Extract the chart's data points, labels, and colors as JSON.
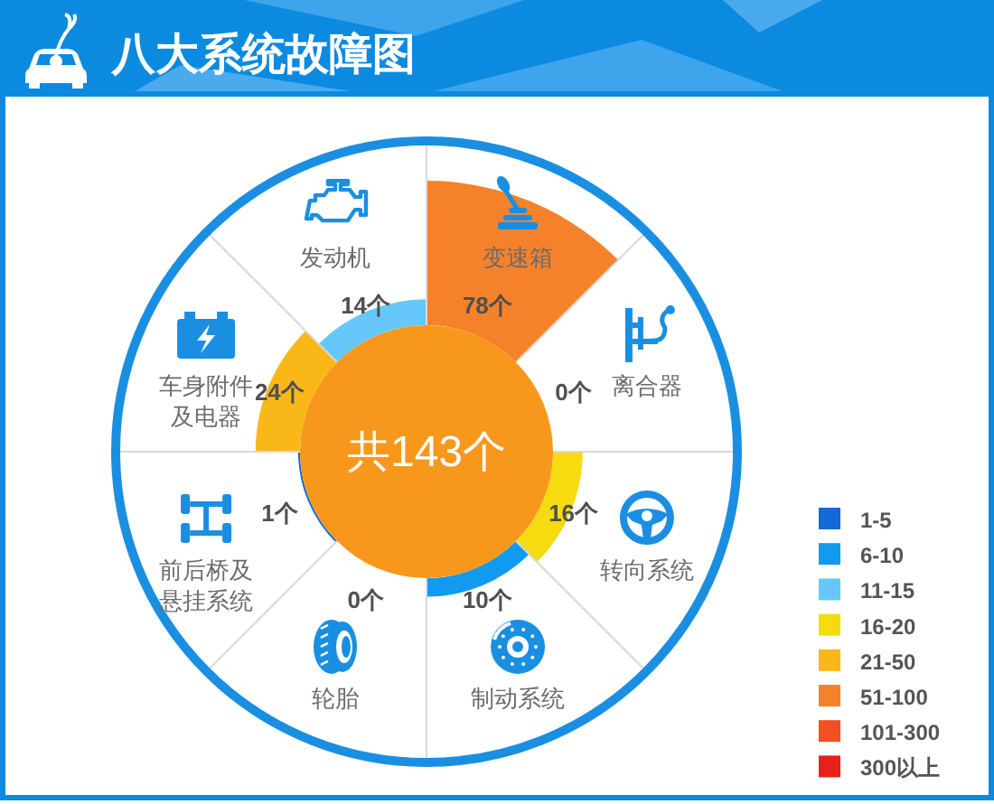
{
  "chart_data": {
    "type": "other",
    "title": "八大系统故障图",
    "categories": [
      "发动机",
      "变速箱",
      "离合器",
      "转向系统",
      "制动系统",
      "轮胎",
      "前后桥及悬挂系统",
      "车身附件及电器"
    ],
    "legend": "bottom right",
    "annotations": [
      "共143个"
    ],
    "series": [
      {
        "name": "1-5",
        "color": "#1469d9",
        "values": [
          null,
          null,
          null,
          null,
          null,
          null,
          1,
          null
        ],
        "value_labels": [
          null,
          null,
          null,
          null,
          null,
          null,
          "1个",
          null
        ]
      },
      {
        "name": "6-10",
        "color": "#109af0",
        "values": [
          null,
          null,
          null,
          null,
          10,
          null,
          null,
          null
        ],
        "value_labels": [
          null,
          null,
          null,
          null,
          "10个",
          null,
          null,
          null
        ]
      },
      {
        "name": "11-15",
        "color": "#66c8fa",
        "values": [
          14,
          null,
          null,
          null,
          null,
          null,
          null,
          null
        ],
        "value_labels": [
          "14个",
          null,
          null,
          null,
          null,
          null,
          null,
          null
        ]
      },
      {
        "name": "16-20",
        "color": "#f5db10",
        "values": [
          null,
          null,
          null,
          16,
          null,
          null,
          null,
          null
        ],
        "value_labels": [
          null,
          null,
          null,
          "16个",
          null,
          null,
          null,
          null
        ]
      },
      {
        "name": "21-50",
        "color": "#fab818",
        "values": [
          null,
          null,
          null,
          null,
          null,
          null,
          null,
          24
        ],
        "value_labels": [
          null,
          null,
          null,
          null,
          null,
          null,
          null,
          "24个"
        ]
      },
      {
        "name": "51-100",
        "color": "#f5822a",
        "values": [
          null,
          78,
          null,
          null,
          null,
          null,
          null,
          null
        ],
        "value_labels": [
          null,
          "78个",
          null,
          null,
          null,
          null,
          null,
          null
        ]
      },
      {
        "name": "101-300",
        "color": "#f24f23",
        "values": [
          null,
          null,
          null,
          null,
          null,
          null,
          null,
          null
        ]
      },
      {
        "name": "300以上",
        "color": "#e8201a",
        "values": [
          null,
          null,
          null,
          null,
          null,
          null,
          null,
          null
        ]
      },
      {
        "values": [
          null,
          null,
          0,
          null,
          null,
          0,
          null,
          null
        ],
        "value_labels": [
          null,
          null,
          "0个",
          null,
          null,
          "0个",
          null,
          null
        ]
      }
    ]
  }
}
